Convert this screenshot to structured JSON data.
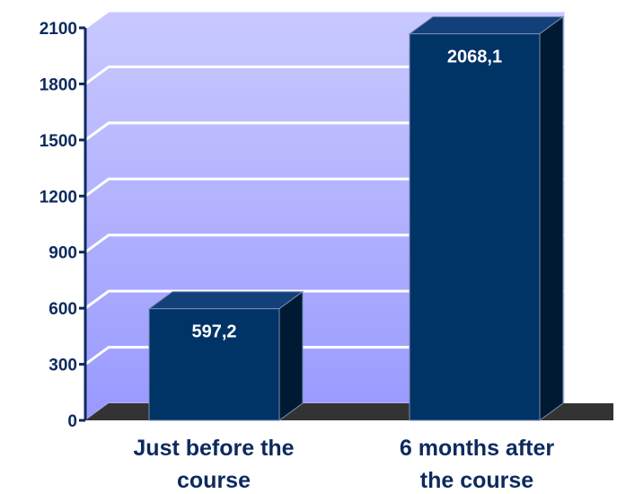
{
  "chart_data": {
    "type": "bar",
    "categories": [
      [
        "Just before the",
        "course"
      ],
      [
        "6 months after",
        "the course"
      ]
    ],
    "values": [
      597.2,
      2068.1
    ],
    "data_labels": [
      "597,2",
      "2068,1"
    ],
    "yticks": [
      0,
      300,
      600,
      900,
      1200,
      1500,
      1800,
      2100
    ],
    "ytick_labels": [
      "0",
      "300",
      "600",
      "900",
      "1200",
      "1500",
      "1800",
      "2100"
    ],
    "ylim": [
      0,
      2100
    ],
    "grid": true,
    "style": "3d",
    "colors": {
      "bar_front": "#003366",
      "bar_side": "#001a33",
      "bar_top": "#14407a",
      "wall_top": "#c9c9ff",
      "wall_bottom": "#9999ff",
      "floor": "#333333",
      "axis": "#0d2a5e",
      "text": "#0d2a5e",
      "label_text": "#ffffff"
    }
  }
}
